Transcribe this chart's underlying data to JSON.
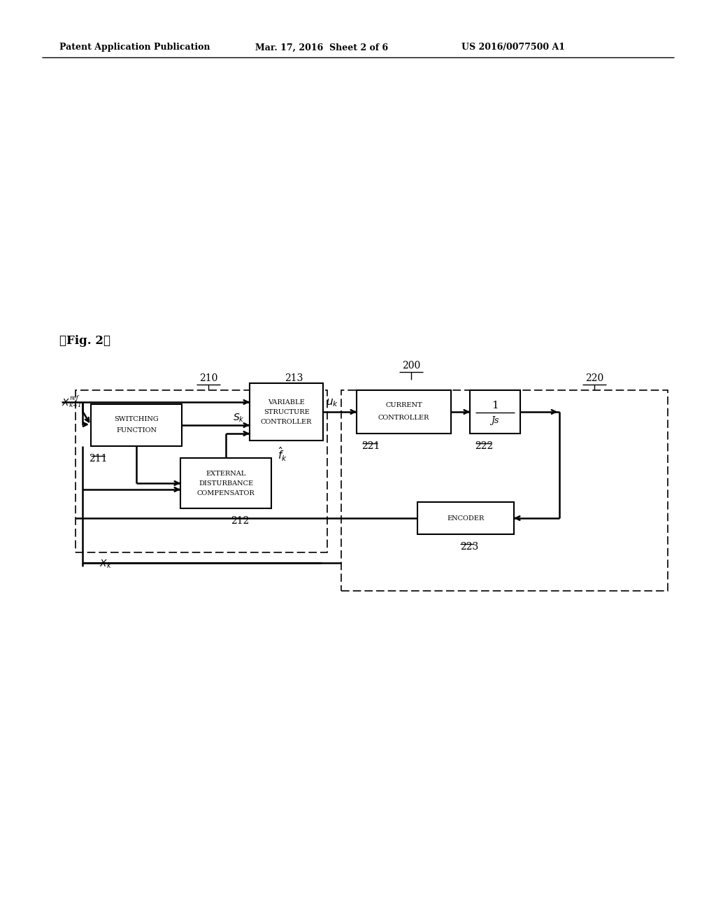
{
  "title_left": "Patent Application Publication",
  "title_mid": "Mar. 17, 2016  Sheet 2 of 6",
  "title_right": "US 2016/0077500 A1",
  "fig_label": "【Fig. 2】",
  "label_200": "200",
  "label_210": "210",
  "label_213": "213",
  "label_220": "220",
  "label_211": "211",
  "label_212": "212",
  "label_221": "221",
  "label_222": "222",
  "label_223": "223",
  "box_switching": [
    "SWITCHING",
    "FUNCTION"
  ],
  "box_vsc": [
    "VARIABLE",
    "STRUCTURE",
    "CONTROLLER"
  ],
  "box_ext": [
    "EXTERNAL",
    "DISTURBANCE",
    "COMPENSATOR"
  ],
  "box_current": [
    "CURRENT",
    "CONTROLLER"
  ],
  "box_1js_num": "1",
  "box_1js_den": "Js",
  "box_encoder": "ENCODER",
  "bg_color": "#ffffff"
}
